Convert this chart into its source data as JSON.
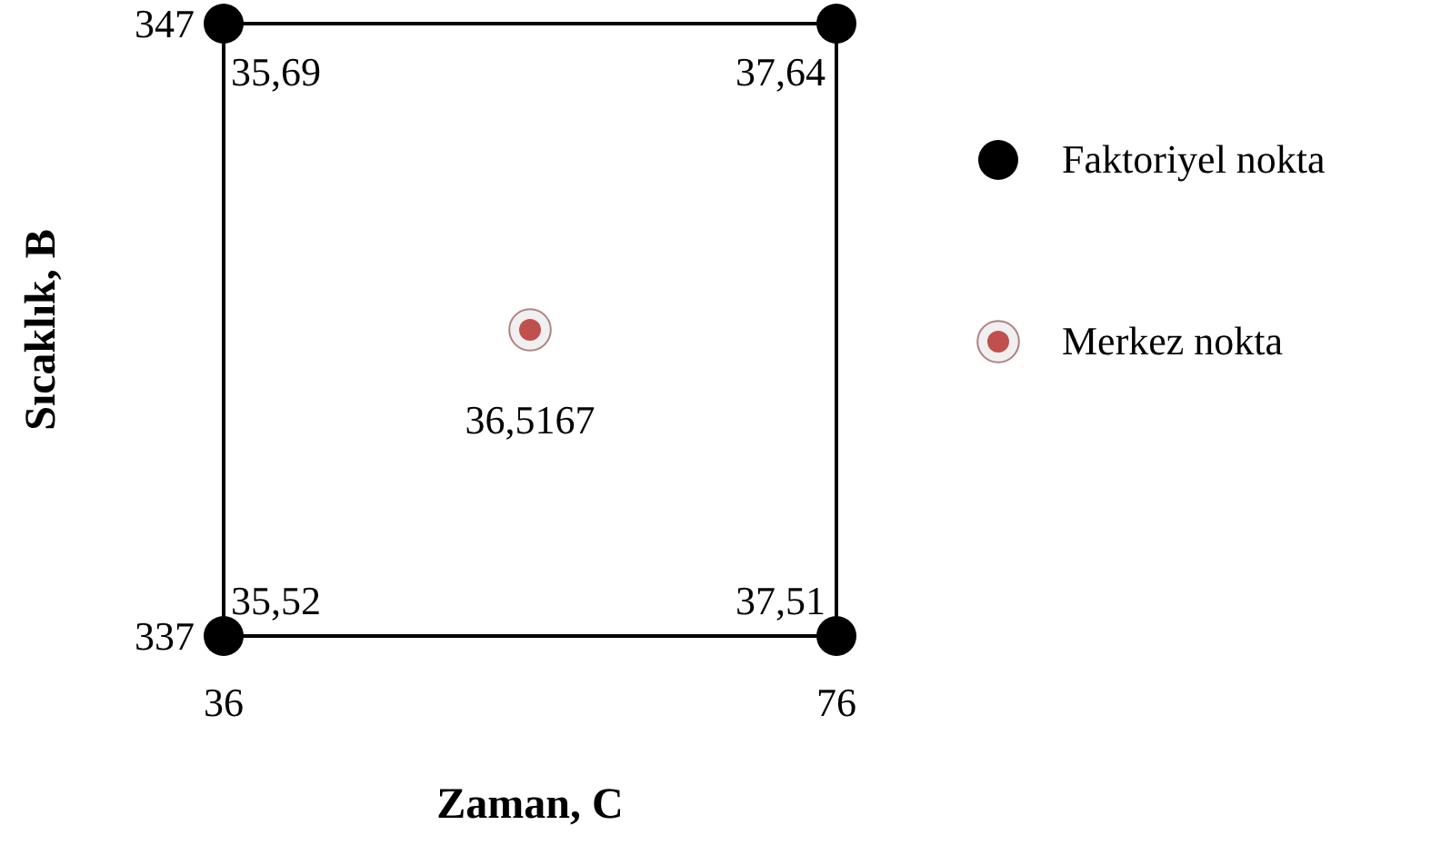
{
  "chart_data": {
    "type": "scatter",
    "xlabel": "Zaman, C",
    "ylabel": "Sıcaklık, B",
    "xlim": [
      36,
      76
    ],
    "ylim": [
      337,
      347
    ],
    "xticks": [
      36,
      76
    ],
    "yticks": [
      337,
      347
    ],
    "marker": "circle",
    "legend": "right",
    "grid": false,
    "series": [
      {
        "name": "Faktoriyel nokta",
        "color": "#000000",
        "x": [
          36,
          76,
          36,
          76
        ],
        "values": [
          337,
          337,
          347,
          347
        ]
      },
      {
        "name": "Merkez nokta",
        "color": "#c0504d",
        "x": [
          56
        ],
        "values": [
          342
        ]
      }
    ],
    "annotations": [
      {
        "text": "35,69",
        "x": 36,
        "y": 347
      },
      {
        "text": "37,64",
        "x": 76,
        "y": 347
      },
      {
        "text": "35,52",
        "x": 36,
        "y": 337
      },
      {
        "text": "37,51",
        "x": 76,
        "y": 337
      },
      {
        "text": "36,5167",
        "x": 56,
        "y": 342
      }
    ]
  }
}
